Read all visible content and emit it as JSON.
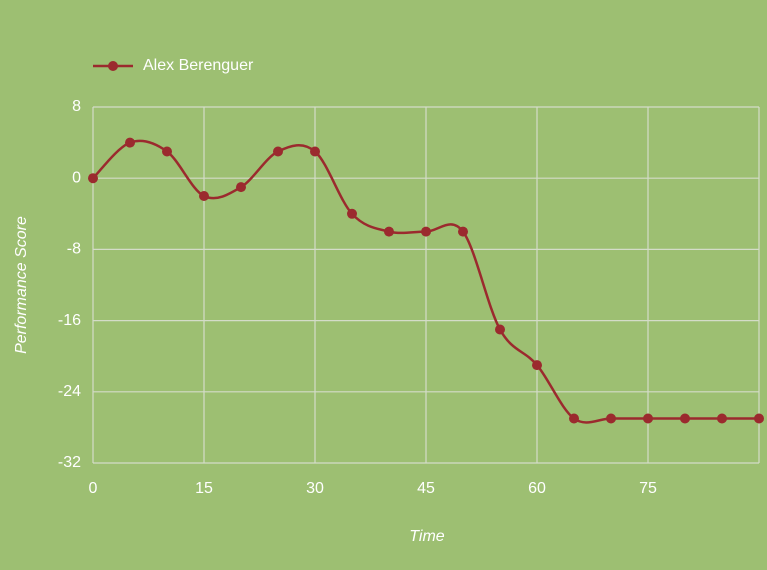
{
  "chart_data": {
    "type": "line",
    "x_label": "Time",
    "y_label": "Performance Score",
    "x": [
      0,
      5,
      10,
      15,
      20,
      25,
      30,
      35,
      40,
      45,
      50,
      55,
      60,
      65,
      70,
      75,
      80,
      85,
      90
    ],
    "series": [
      {
        "name": "Alex Berenguer",
        "color": "#9b2a2e",
        "values": [
          0,
          4,
          3,
          -2,
          -1,
          3,
          3,
          -4,
          -6,
          -6,
          -6,
          -17,
          -21,
          -27,
          -27,
          -27,
          -27,
          -27,
          -27
        ]
      }
    ],
    "xlim": [
      0,
      90
    ],
    "xticks": [
      0,
      15,
      30,
      45,
      60,
      75
    ],
    "ylim": [
      -32,
      8
    ],
    "yticks": [
      8,
      0,
      -8,
      -16,
      -24,
      -32
    ],
    "grid": true,
    "smooth": true,
    "legend": "top-left"
  }
}
